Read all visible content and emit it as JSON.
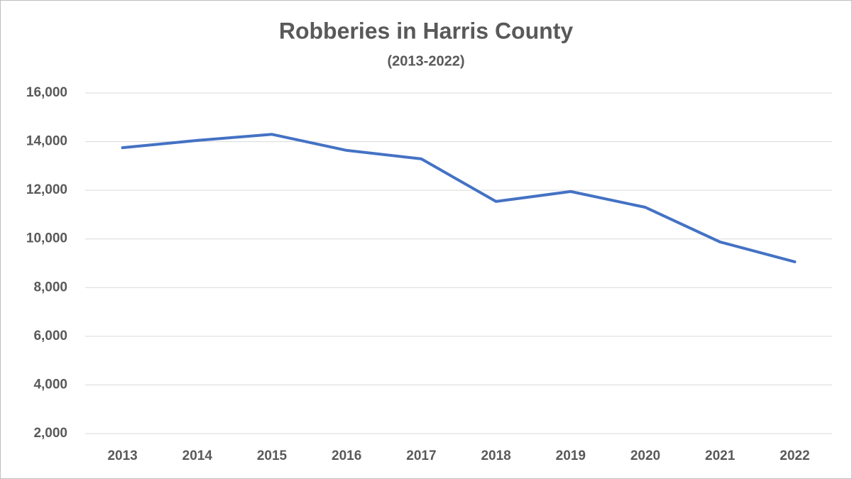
{
  "chart_data": {
    "type": "line",
    "title": "Robberies in Harris County",
    "subtitle": "(2013-2022)",
    "categories": [
      "2013",
      "2014",
      "2015",
      "2016",
      "2017",
      "2018",
      "2019",
      "2020",
      "2021",
      "2022"
    ],
    "series": [
      {
        "name": "Robberies",
        "color": "#4472c4",
        "values": [
          13750,
          14050,
          14300,
          13640,
          13290,
          11540,
          11950,
          11300,
          9875,
          9060
        ]
      }
    ],
    "ylim": [
      2000,
      16000
    ],
    "yticks": [
      {
        "value": 2000,
        "label": "2,000"
      },
      {
        "value": 4000,
        "label": "4,000"
      },
      {
        "value": 6000,
        "label": "6,000"
      },
      {
        "value": 8000,
        "label": "8,000"
      },
      {
        "value": 10000,
        "label": "10,000"
      },
      {
        "value": 12000,
        "label": "12,000"
      },
      {
        "value": 14000,
        "label": "14,000"
      },
      {
        "value": 16000,
        "label": "16,000"
      }
    ],
    "grid": true
  }
}
